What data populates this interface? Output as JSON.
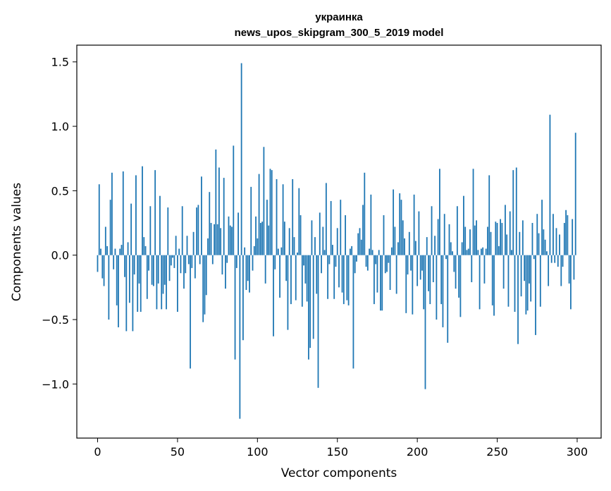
{
  "chart_data": {
    "type": "bar",
    "title_line1": "украинка",
    "title_line2": "news_upos_skipgram_300_5_2019 model",
    "xlabel": "Vector components",
    "ylabel": "Components values",
    "xlim": [
      -13,
      315
    ],
    "ylim": [
      -1.42,
      1.63
    ],
    "xticks": [
      0,
      50,
      100,
      150,
      200,
      250,
      300
    ],
    "xtick_labels": [
      "0",
      "50",
      "100",
      "150",
      "200",
      "250",
      "300"
    ],
    "yticks": [
      -1.0,
      -0.5,
      0.0,
      0.5,
      1.0,
      1.5
    ],
    "ytick_labels": [
      "−1.0",
      "−0.5",
      "0.0",
      "0.5",
      "1.0",
      "1.5"
    ],
    "grid": false,
    "bar_color": "#1f77b4",
    "x_start": 0,
    "values": [
      -0.13,
      0.55,
      0.05,
      -0.18,
      -0.24,
      0.22,
      0.07,
      -0.5,
      0.43,
      0.64,
      -0.11,
      0.05,
      -0.39,
      -0.56,
      0.05,
      0.08,
      0.65,
      -0.17,
      -0.59,
      0.1,
      -0.37,
      0.4,
      -0.59,
      -0.15,
      0.62,
      -0.44,
      -0.22,
      -0.44,
      0.69,
      0.14,
      0.07,
      -0.34,
      -0.12,
      0.38,
      -0.23,
      -0.24,
      0.66,
      -0.42,
      -0.22,
      0.46,
      -0.42,
      -0.3,
      -0.23,
      -0.42,
      0.37,
      -0.2,
      -0.08,
      -0.02,
      -0.1,
      0.15,
      -0.44,
      0.05,
      -0.14,
      0.38,
      -0.26,
      -0.14,
      0.15,
      -0.07,
      -0.88,
      -0.1,
      0.18,
      -0.18,
      0.37,
      0.39,
      -0.07,
      0.61,
      -0.52,
      -0.46,
      -0.31,
      0.13,
      0.49,
      0.25,
      -0.07,
      0.24,
      0.82,
      0.24,
      0.68,
      0.21,
      -0.15,
      0.6,
      -0.26,
      -0.06,
      0.3,
      0.23,
      0.22,
      0.85,
      -0.81,
      -0.1,
      0.33,
      -1.27,
      1.49,
      -0.66,
      0.06,
      -0.27,
      -0.2,
      -0.29,
      0.53,
      -0.12,
      0.07,
      0.3,
      0.13,
      0.63,
      0.25,
      0.26,
      0.84,
      -0.22,
      0.43,
      0.23,
      0.67,
      0.66,
      -0.63,
      -0.11,
      0.59,
      0.05,
      -0.33,
      0.06,
      0.55,
      0.26,
      -0.2,
      -0.58,
      0.21,
      -0.38,
      0.59,
      0.14,
      -0.35,
      0.02,
      0.52,
      0.31,
      -0.4,
      -0.08,
      -0.22,
      -0.36,
      -0.81,
      -0.72,
      0.27,
      -0.65,
      0.14,
      -0.3,
      -1.03,
      0.33,
      -0.14,
      0.22,
      0.04,
      0.56,
      -0.34,
      -0.07,
      0.42,
      0.08,
      -0.34,
      -0.09,
      0.21,
      -0.25,
      0.43,
      -0.29,
      -0.38,
      0.31,
      -0.35,
      -0.39,
      0.05,
      0.07,
      -0.88,
      -0.14,
      -0.05,
      0.17,
      0.21,
      0.12,
      0.39,
      0.64,
      -0.09,
      -0.12,
      0.05,
      0.47,
      0.04,
      -0.38,
      -0.07,
      -0.29,
      0.04,
      -0.43,
      -0.43,
      0.31,
      -0.14,
      -0.13,
      -0.06,
      -0.27,
      0.06,
      0.51,
      0.22,
      -0.3,
      0.1,
      0.48,
      0.43,
      0.27,
      0.13,
      -0.45,
      -0.15,
      0.18,
      -0.12,
      -0.46,
      0.47,
      0.11,
      -0.24,
      0.34,
      -0.19,
      -0.12,
      -0.42,
      -1.04,
      0.14,
      -0.28,
      -0.38,
      0.38,
      -0.21,
      0.15,
      -0.5,
      0.28,
      0.67,
      -0.38,
      -0.56,
      0.32,
      -0.03,
      -0.68,
      0.24,
      0.1,
      0.03,
      -0.13,
      -0.26,
      0.38,
      -0.33,
      -0.48,
      0.1,
      0.46,
      0.22,
      0.04,
      0.05,
      0.2,
      -0.21,
      0.67,
      0.23,
      0.27,
      0.04,
      -0.42,
      0.05,
      0.06,
      -0.22,
      0.05,
      0.22,
      0.62,
      0.18,
      -0.39,
      -0.47,
      0.26,
      0.25,
      0.07,
      0.28,
      0.25,
      -0.26,
      0.39,
      0.16,
      -0.4,
      0.34,
      0.04,
      0.66,
      -0.44,
      0.68,
      -0.69,
      0.18,
      -0.32,
      0.27,
      -0.2,
      -0.46,
      -0.43,
      -0.22,
      -0.36,
      0.25,
      -0.03,
      -0.62,
      0.32,
      0.17,
      -0.4,
      0.43,
      0.2,
      0.12,
      0.03,
      -0.24,
      1.09,
      -0.06,
      0.32,
      -0.06,
      0.21,
      -0.09,
      0.16,
      -0.24,
      -0.09,
      0.25,
      0.35,
      0.31,
      -0.22,
      -0.42,
      0.28,
      -0.19,
      0.95
    ]
  }
}
